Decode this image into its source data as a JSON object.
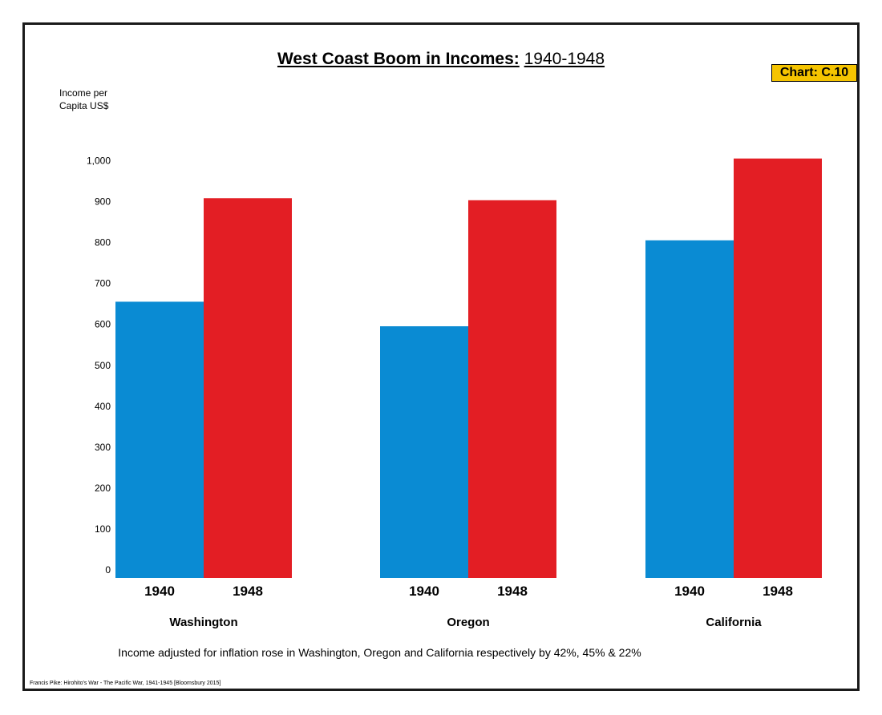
{
  "chart_data": {
    "type": "bar",
    "title_bold": "West Coast Boom in Incomes:",
    "title_rest": "1940-1948",
    "badge": "Chart: C.10",
    "ylabel_lines": [
      "Income per",
      "Capita US$"
    ],
    "ylim": [
      0,
      1000
    ],
    "yticks": [
      0,
      100,
      200,
      300,
      400,
      500,
      600,
      700,
      800,
      900,
      1000
    ],
    "ytick_labels": [
      "0",
      "100",
      "200",
      "300",
      "400",
      "500",
      "600",
      "700",
      "800",
      "900",
      "1,000"
    ],
    "categories": [
      "Washington",
      "Oregon",
      "California"
    ],
    "series": [
      {
        "name": "1940",
        "color": "#0a8bd3",
        "values": [
          675,
          615,
          825
        ]
      },
      {
        "name": "1948",
        "color": "#e31e24",
        "values": [
          928,
          923,
          1025
        ]
      }
    ],
    "note": "Income adjusted for inflation rose in Washington, Oregon and California respectively by 42%, 45% & 22%",
    "source": "Francis Pike:  Hirohito's War - The Pacific War, 1941-1945   [Bloomsbury 2015]"
  }
}
